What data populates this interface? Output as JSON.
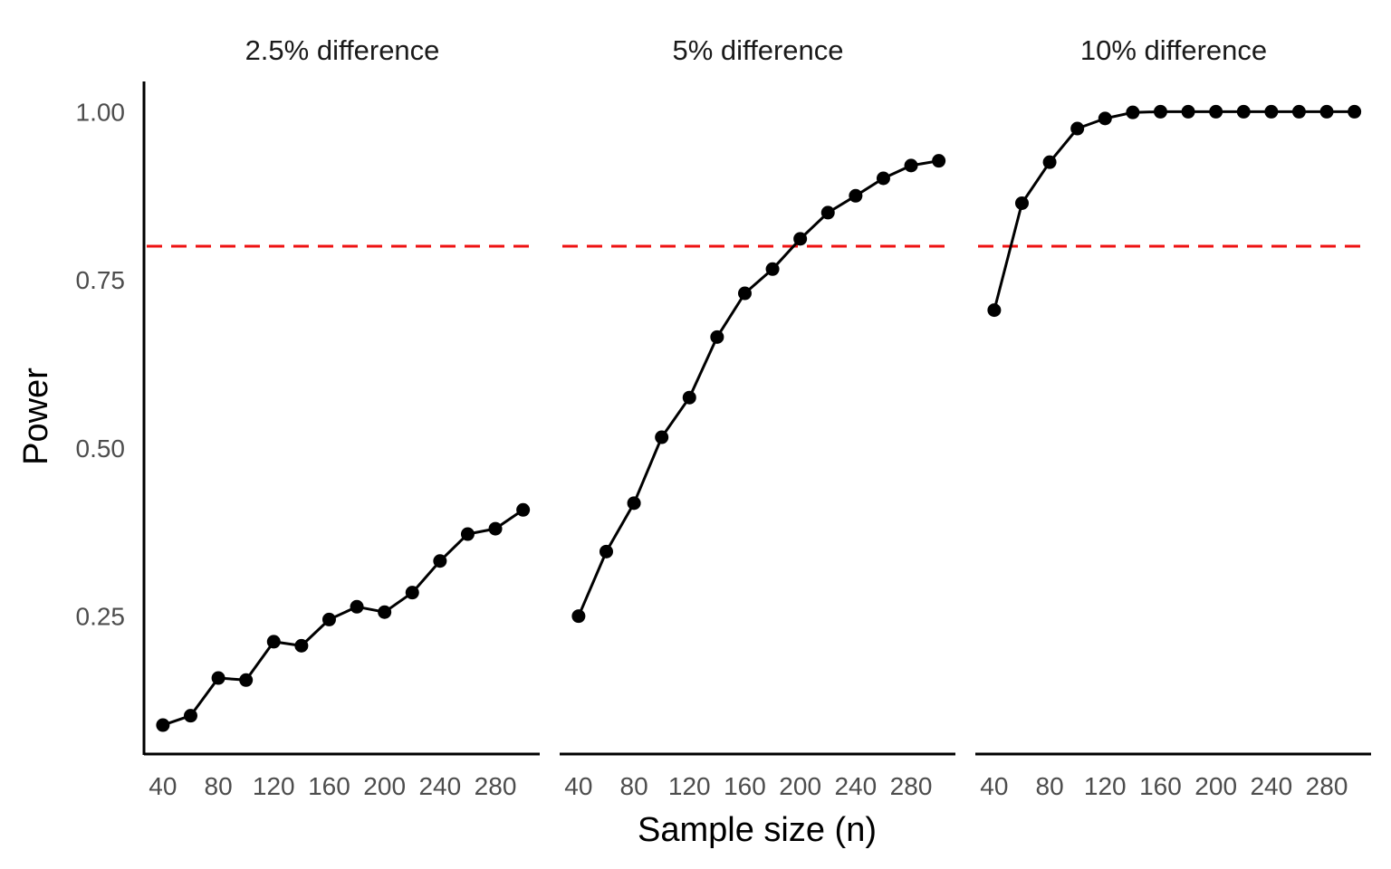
{
  "chart_data": {
    "type": "line",
    "facets": [
      {
        "name": "2.5% difference",
        "x": [
          40,
          60,
          80,
          100,
          120,
          140,
          160,
          180,
          200,
          220,
          240,
          260,
          280,
          300
        ],
        "y": [
          0.088,
          0.102,
          0.158,
          0.155,
          0.212,
          0.206,
          0.245,
          0.264,
          0.256,
          0.285,
          0.332,
          0.372,
          0.38,
          0.408
        ]
      },
      {
        "name": "5% difference",
        "x": [
          40,
          60,
          80,
          100,
          120,
          140,
          160,
          180,
          200,
          220,
          240,
          260,
          280,
          300
        ],
        "y": [
          0.25,
          0.346,
          0.418,
          0.516,
          0.575,
          0.665,
          0.73,
          0.766,
          0.811,
          0.85,
          0.875,
          0.901,
          0.92,
          0.927
        ]
      },
      {
        "name": "10% difference",
        "x": [
          40,
          60,
          80,
          100,
          120,
          140,
          160,
          180,
          200,
          220,
          240,
          260,
          280,
          300
        ],
        "y": [
          0.705,
          0.864,
          0.925,
          0.975,
          0.99,
          0.999,
          1.0,
          1.0,
          1.0,
          1.0,
          1.0,
          1.0,
          1.0,
          1.0
        ]
      }
    ],
    "reference_line": {
      "y": 0.8,
      "color": "#ee1111",
      "style": "dashed"
    },
    "xlabel": "Sample size (n)",
    "ylabel": "Power",
    "x_ticks": [
      40,
      80,
      120,
      160,
      200,
      240,
      280
    ],
    "y_ticks": [
      0.25,
      0.5,
      0.75,
      1.0
    ],
    "y_tick_labels": [
      "0.25",
      "0.50",
      "0.75",
      "1.00"
    ],
    "xlim": [
      27,
      312
    ],
    "ylim": [
      0.045,
      1.045
    ],
    "line_color": "#000000",
    "grid": false
  }
}
